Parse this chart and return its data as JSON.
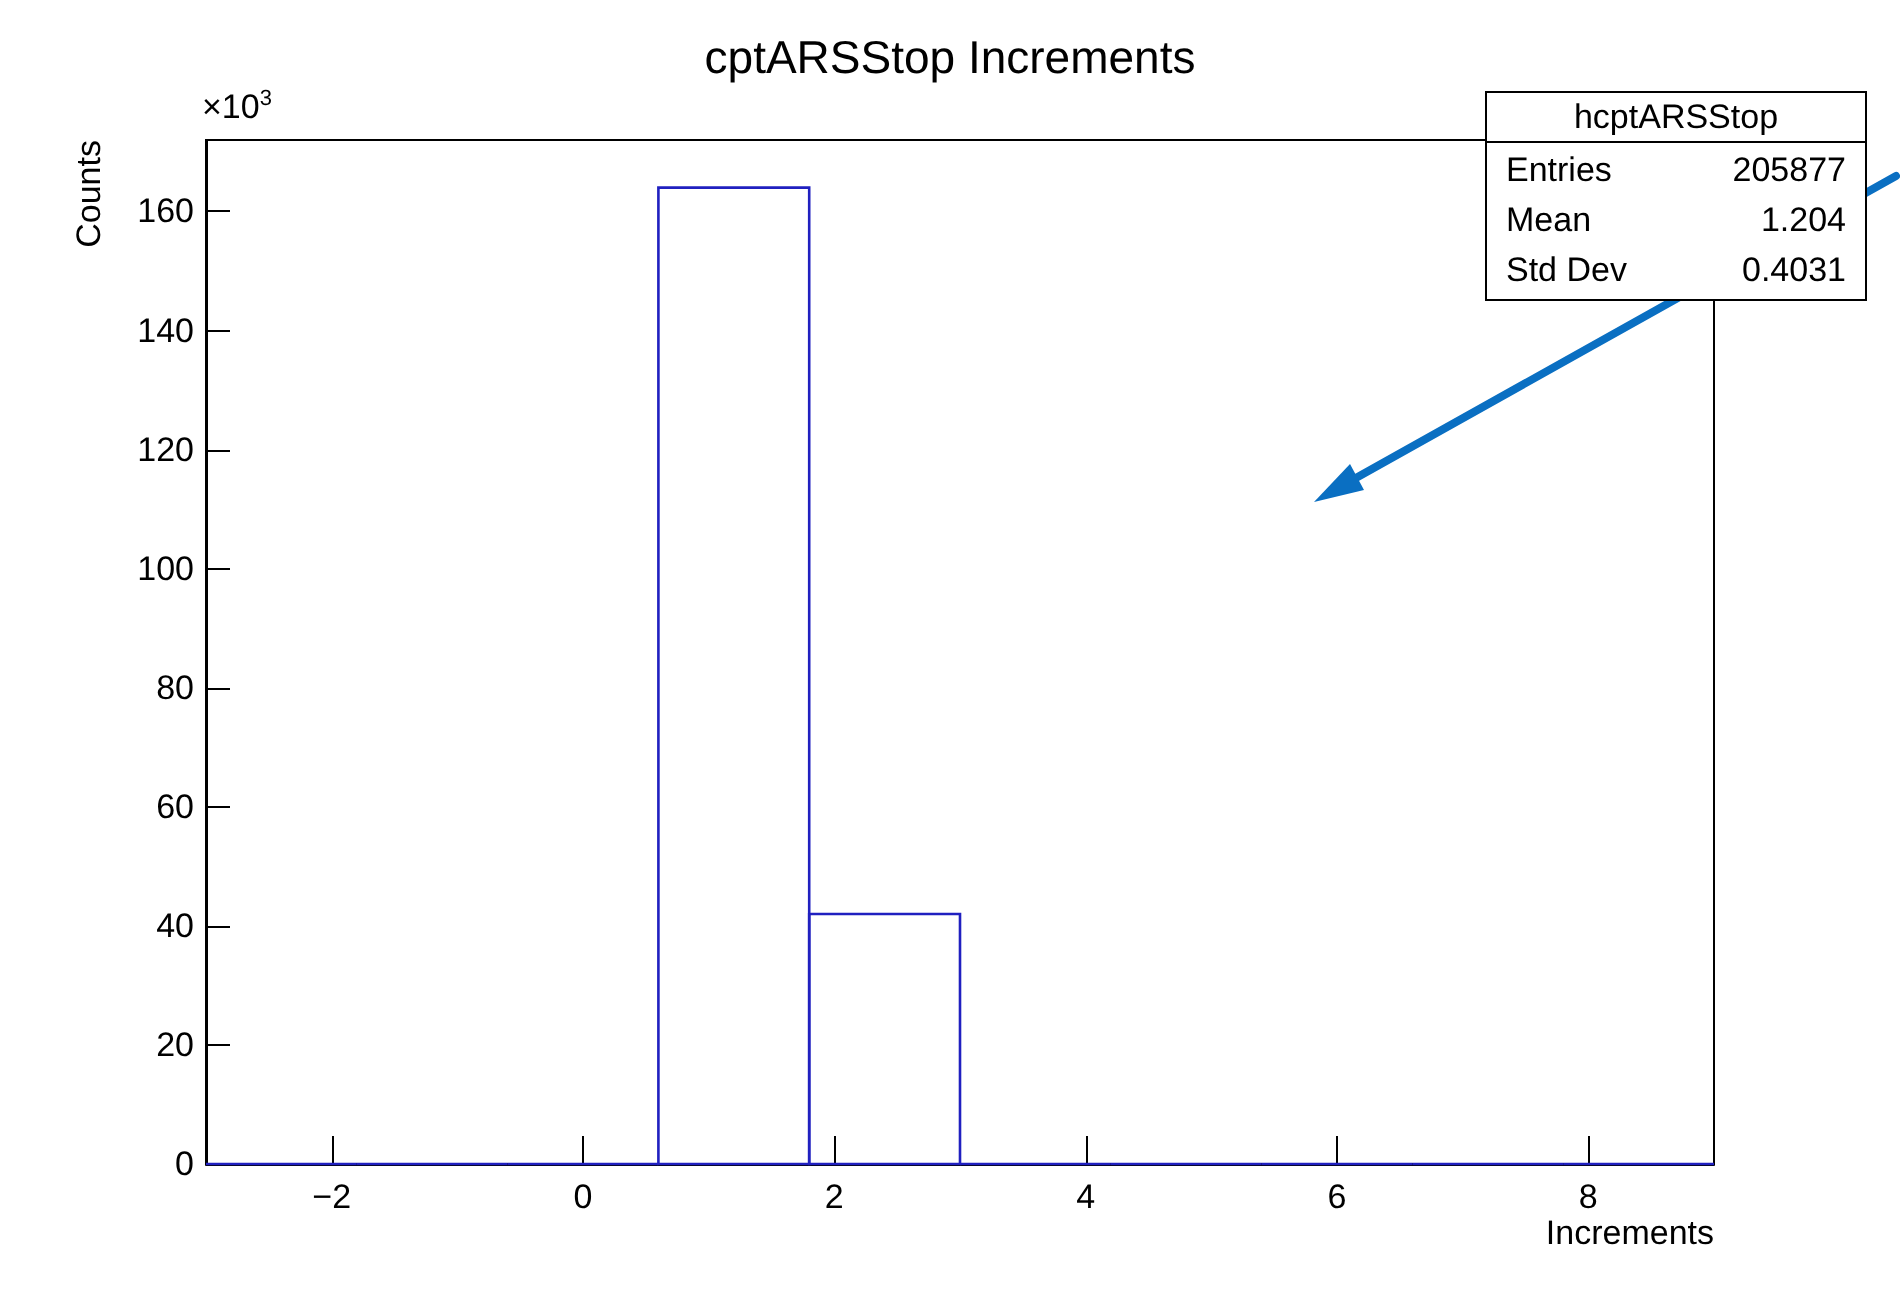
{
  "chart_data": {
    "type": "histogram",
    "title": "cptARSStop Increments",
    "xlabel": "Increments",
    "ylabel": "Counts",
    "bins": [
      -3,
      -1.8,
      -0.6,
      0.6,
      1.8,
      3,
      4.2,
      5.4,
      6.6,
      7.8,
      9
    ],
    "values": [
      0,
      0,
      0,
      164,
      42,
      0,
      0,
      0,
      0,
      0
    ],
    "color": "#2020c0",
    "xlim": [
      -3,
      9
    ],
    "xticks": [
      {
        "value": -2,
        "label": "−2"
      },
      0,
      2,
      4,
      6,
      8
    ],
    "ylim": [
      0,
      172
    ],
    "yticks": [
      0,
      20,
      40,
      60,
      80,
      100,
      120,
      140,
      160
    ],
    "grid": false,
    "annotations": [
      "×10$^{3}$",
      "hcptARSStop",
      "Entries",
      "205877",
      "Mean",
      "1.204",
      "Std Dev",
      "0.4031"
    ]
  }
}
